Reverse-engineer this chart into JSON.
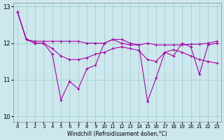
{
  "xlabel": "Windchill (Refroidissement éolien,°C)",
  "bg_color": "#cce8ee",
  "line_color": "#aa00aa",
  "grid_color": "#99ccbb",
  "xlim_min": -0.5,
  "xlim_max": 23.5,
  "ylim_min": 9.85,
  "ylim_max": 13.1,
  "yticks": [
    10,
    11,
    12,
    13
  ],
  "xticks": [
    0,
    1,
    2,
    3,
    4,
    5,
    6,
    7,
    8,
    9,
    10,
    11,
    12,
    13,
    14,
    15,
    16,
    17,
    18,
    19,
    20,
    21,
    22,
    23
  ],
  "lines": [
    [
      12.85,
      12.1,
      12.05,
      12.05,
      12.05,
      12.05,
      12.05,
      12.05,
      12.0,
      12.0,
      12.0,
      12.1,
      12.1,
      12.0,
      11.95,
      12.0,
      11.95,
      11.95,
      11.95,
      11.95,
      11.97,
      11.97,
      12.0,
      12.05
    ],
    [
      12.85,
      12.1,
      12.0,
      12.0,
      11.85,
      11.65,
      11.55,
      11.55,
      11.6,
      11.7,
      11.75,
      11.85,
      11.9,
      11.85,
      11.8,
      11.55,
      11.5,
      11.75,
      11.82,
      11.75,
      11.65,
      11.55,
      11.5,
      11.45
    ],
    [
      12.85,
      12.1,
      12.0,
      12.0,
      11.7,
      10.45,
      10.95,
      10.75,
      11.3,
      11.4,
      12.0,
      12.1,
      12.0,
      11.95,
      11.95,
      10.4,
      11.05,
      11.75,
      11.65,
      12.0,
      11.9,
      11.15,
      11.95,
      12.0
    ]
  ]
}
